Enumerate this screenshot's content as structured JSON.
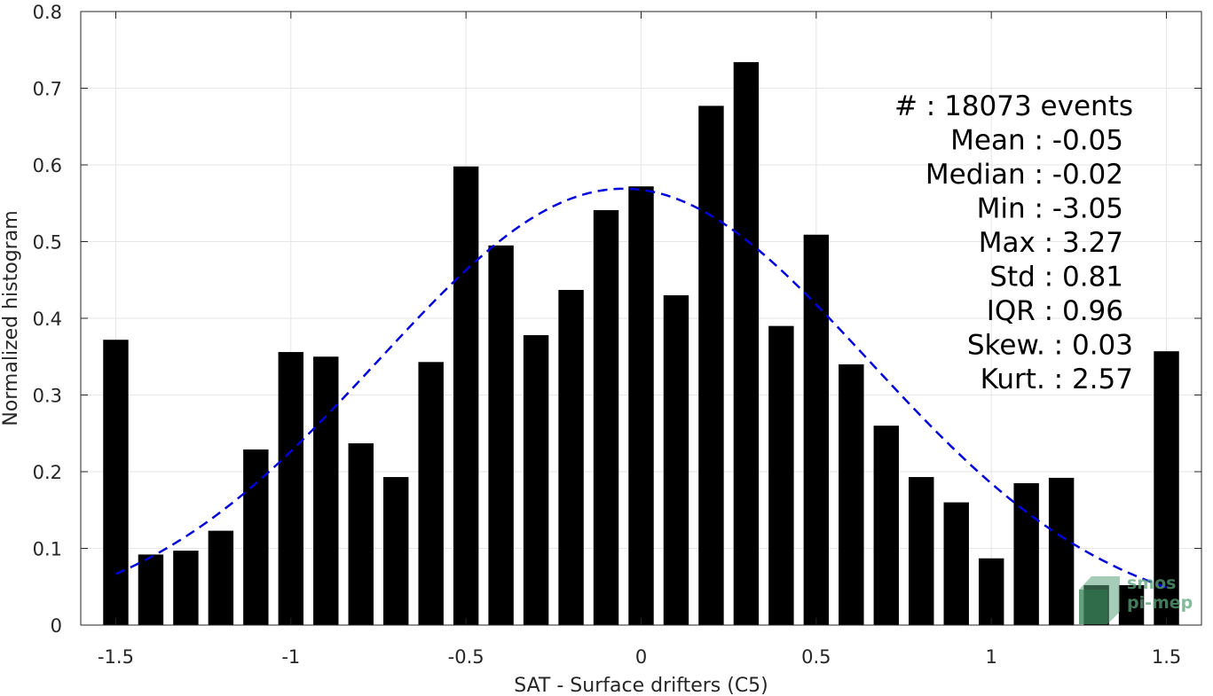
{
  "chart_data": {
    "type": "bar",
    "xlabel": "SAT - Surface drifters (C5)",
    "ylabel": "Normalized histogram",
    "xlim": [
      -1.6,
      1.6
    ],
    "ylim": [
      0,
      0.8
    ],
    "xticks": [
      -1.5,
      -1,
      -0.5,
      0,
      0.5,
      1,
      1.5
    ],
    "xtick_labels": [
      "-1.5",
      "-1",
      "-0.5",
      "0",
      "0.5",
      "1",
      "1.5"
    ],
    "yticks": [
      0,
      0.1,
      0.2,
      0.3,
      0.4,
      0.5,
      0.6,
      0.7,
      0.8
    ],
    "ytick_labels": [
      "0",
      "0.1",
      "0.2",
      "0.3",
      "0.4",
      "0.5",
      "0.6",
      "0.7",
      "0.8"
    ],
    "grid": true,
    "bar_color": "#000000",
    "bins": [
      {
        "x": -1.5,
        "value": 0.372
      },
      {
        "x": -1.4,
        "value": 0.092
      },
      {
        "x": -1.3,
        "value": 0.097
      },
      {
        "x": -1.2,
        "value": 0.123
      },
      {
        "x": -1.1,
        "value": 0.229
      },
      {
        "x": -1.0,
        "value": 0.356
      },
      {
        "x": -0.9,
        "value": 0.35
      },
      {
        "x": -0.8,
        "value": 0.237
      },
      {
        "x": -0.7,
        "value": 0.193
      },
      {
        "x": -0.6,
        "value": 0.343
      },
      {
        "x": -0.5,
        "value": 0.598
      },
      {
        "x": -0.4,
        "value": 0.495
      },
      {
        "x": -0.3,
        "value": 0.378
      },
      {
        "x": -0.2,
        "value": 0.437
      },
      {
        "x": -0.1,
        "value": 0.541
      },
      {
        "x": 0.0,
        "value": 0.572
      },
      {
        "x": 0.1,
        "value": 0.43
      },
      {
        "x": 0.2,
        "value": 0.677
      },
      {
        "x": 0.3,
        "value": 0.734
      },
      {
        "x": 0.4,
        "value": 0.39
      },
      {
        "x": 0.5,
        "value": 0.509
      },
      {
        "x": 0.6,
        "value": 0.34
      },
      {
        "x": 0.7,
        "value": 0.26
      },
      {
        "x": 0.8,
        "value": 0.193
      },
      {
        "x": 0.9,
        "value": 0.16
      },
      {
        "x": 1.0,
        "value": 0.087
      },
      {
        "x": 1.1,
        "value": 0.185
      },
      {
        "x": 1.2,
        "value": 0.192
      },
      {
        "x": 1.3,
        "value": 0.052
      },
      {
        "x": 1.4,
        "value": 0.052
      },
      {
        "x": 1.5,
        "value": 0.357
      }
    ],
    "gaussian_fit": {
      "style": "dashed",
      "color": "#0000dd",
      "x_range": [
        -1.5,
        1.5
      ],
      "mean": -0.05,
      "std": 0.7,
      "peak": 0.569
    },
    "stats_box": {
      "placement": "top-right",
      "lines": [
        "#  : 18073 events",
        "Mean : -0.05",
        "Median : -0.02",
        "Min : -3.05",
        "Max : 3.27",
        "Std : 0.81",
        "IQR : 0.96",
        "Skew. : 0.03",
        "Kurt. : 2.57"
      ]
    },
    "watermark": {
      "line1": "smos",
      "line2": "pi-mep",
      "color": "#5aa37a"
    }
  }
}
